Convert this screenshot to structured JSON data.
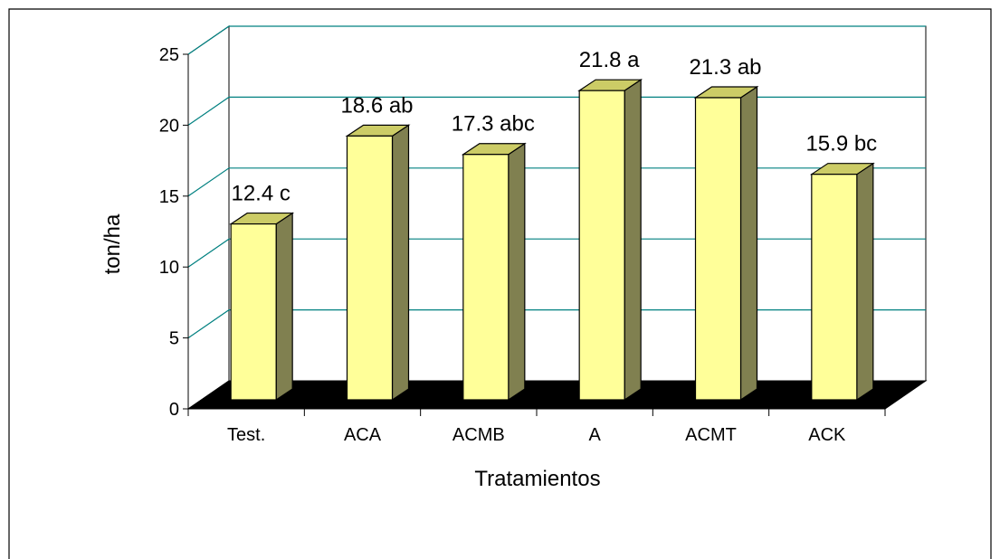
{
  "chart_data": {
    "type": "bar",
    "style": "3d-column",
    "categories": [
      "Test.",
      "ACA",
      "ACMB",
      "A",
      "ACMT",
      "ACK"
    ],
    "values": [
      12.4,
      18.6,
      17.3,
      21.8,
      21.3,
      15.9
    ],
    "data_labels": [
      "12.4 c",
      "18.6 ab",
      "17.3 abc",
      "21.8 a",
      "21.3 ab",
      "15.9 bc"
    ],
    "title": "",
    "xlabel": "Tratamientos",
    "ylabel": "ton/ha",
    "ylim": [
      0,
      25
    ],
    "yticks": [
      "0",
      "5",
      "10",
      "15",
      "20",
      "25"
    ],
    "grid": true,
    "legend": "none",
    "colors": {
      "bar_front": "#ffff99",
      "bar_top": "#cccc66",
      "bar_side": "#808050",
      "floor": "#000000",
      "gridline": "#008080"
    }
  }
}
